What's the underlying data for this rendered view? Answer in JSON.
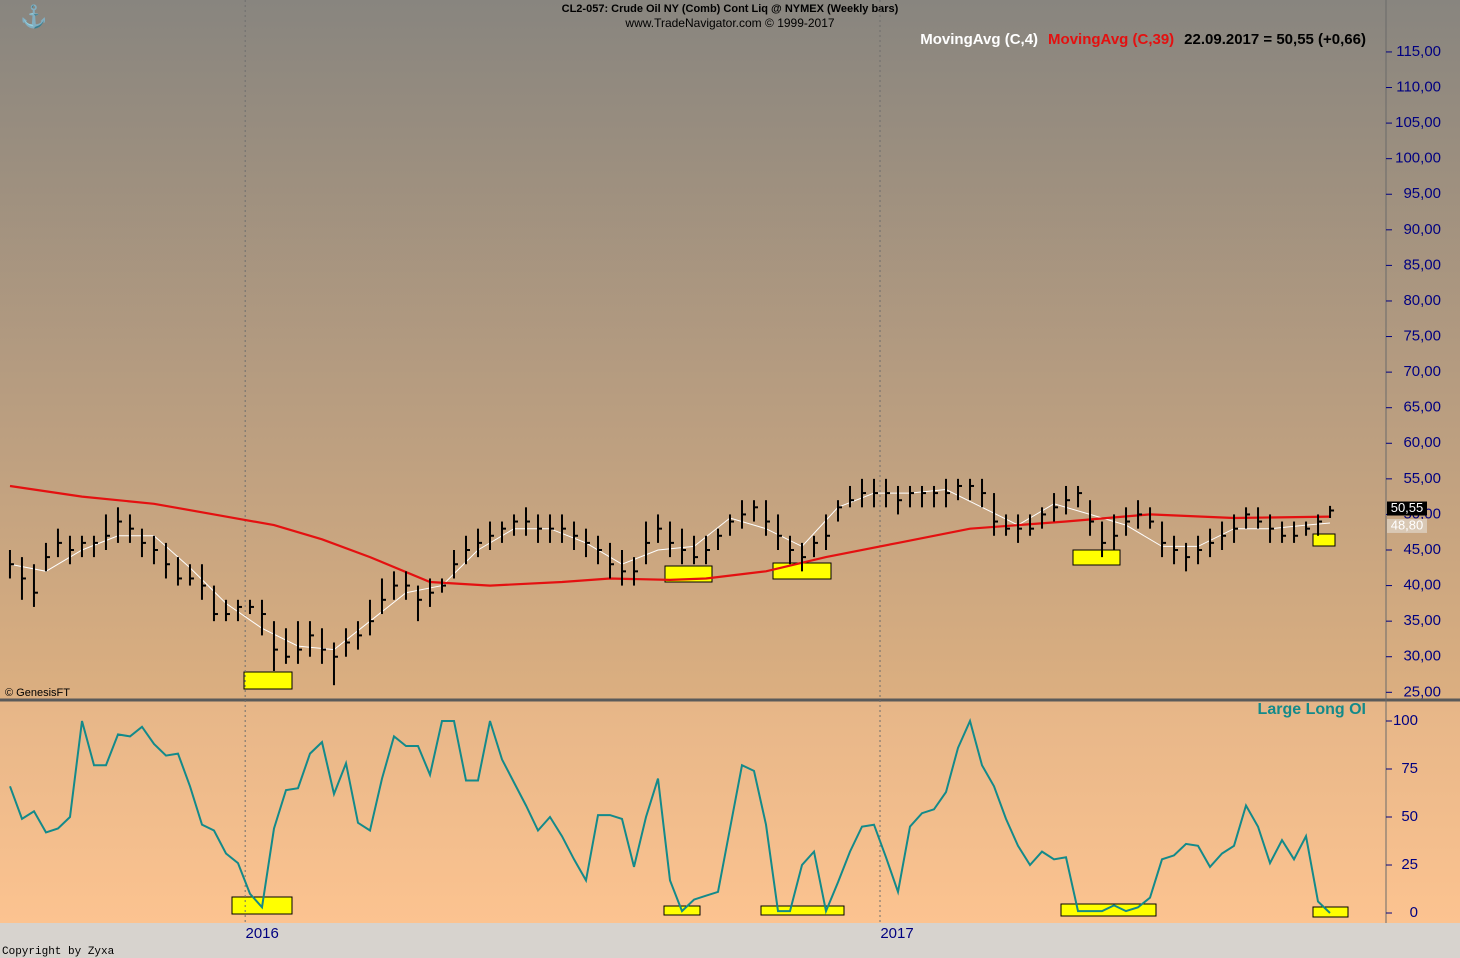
{
  "chart_data": [
    {
      "type": "hlc",
      "title": "CL2-057:  Crude Oil NY (Comb) Cont Liq @ NYMEX  (Weekly bars)",
      "subtitle": "www.TradeNavigator.com © 1999-2017",
      "note": "22.09.2017 = 50,55 (+0,66)",
      "credit": "© GenesisFT",
      "color": "#000000",
      "high": [
        45,
        44,
        43,
        46,
        48,
        47,
        47,
        47,
        50,
        51,
        50,
        48,
        47,
        46,
        44,
        43,
        43,
        40,
        38,
        38,
        38,
        38,
        35,
        34,
        35,
        35,
        34,
        32,
        34,
        35,
        38,
        41,
        42,
        42,
        40,
        41,
        41,
        45,
        47,
        48,
        49,
        49,
        50,
        51,
        50,
        50,
        50,
        49,
        48,
        47,
        46,
        45,
        44,
        49,
        50,
        49,
        48,
        47,
        47,
        48,
        50,
        52,
        52,
        52,
        50,
        47,
        46,
        47,
        50,
        52,
        54,
        55,
        55,
        55,
        54,
        54,
        54,
        54,
        55,
        55,
        55,
        55,
        53,
        50,
        50,
        50,
        51,
        53,
        54,
        54,
        52,
        49,
        50,
        51,
        52,
        51,
        49,
        47,
        46,
        47,
        48,
        49,
        50,
        51,
        51,
        50,
        49,
        49,
        49,
        50,
        51.2
      ],
      "low": [
        41,
        38,
        37,
        42,
        44,
        43,
        44,
        44,
        45,
        46,
        46,
        44,
        43,
        41,
        40,
        40,
        38,
        35,
        35,
        35,
        36,
        33,
        28,
        29,
        29,
        30,
        29,
        26,
        30,
        31,
        33,
        36,
        38,
        38,
        35,
        37,
        39,
        41,
        43,
        44,
        45,
        46,
        47,
        47,
        46,
        46,
        46,
        45,
        44,
        43,
        41,
        40,
        40,
        43,
        46,
        44,
        43,
        43,
        43,
        45,
        47,
        48,
        49,
        47,
        45,
        43,
        42,
        44,
        45,
        49,
        51,
        51,
        51,
        51,
        50,
        51,
        51,
        51,
        51,
        52,
        52,
        51,
        47,
        47,
        46,
        47,
        48,
        49,
        50,
        51,
        47,
        44,
        45,
        47,
        48,
        48,
        44,
        43,
        42,
        43,
        44,
        45,
        46,
        48,
        48,
        46,
        46,
        46,
        47,
        47,
        49.5
      ],
      "close": [
        43,
        41,
        39,
        44,
        46,
        45,
        46,
        46,
        47,
        49,
        48,
        46,
        45,
        43,
        41,
        41,
        40,
        36,
        36,
        37,
        37,
        36,
        31,
        30,
        31,
        33,
        31,
        30,
        32,
        33,
        35,
        38,
        40,
        40,
        38,
        39,
        40,
        43,
        45,
        46,
        47,
        48,
        49,
        49,
        48,
        48,
        48,
        47,
        46,
        45,
        43,
        42,
        42,
        46,
        48,
        46,
        45,
        44,
        45,
        47,
        49,
        50,
        51,
        49,
        47,
        45,
        44,
        46,
        47,
        51,
        52,
        53,
        53,
        53,
        52,
        53,
        53,
        53,
        53,
        54,
        54,
        53,
        49,
        48,
        48,
        48,
        50,
        51,
        52,
        53,
        49,
        46,
        47,
        49,
        50,
        49,
        46,
        45,
        44,
        45,
        46,
        47,
        48,
        50,
        49,
        48,
        47,
        47,
        48,
        49,
        50.55
      ],
      "series": [
        {
          "name": "MovingAvg (C,4)",
          "color": "#ffffff",
          "x": [
            0,
            3,
            6,
            9,
            12,
            15,
            18,
            21,
            24,
            27,
            30,
            33,
            36,
            39,
            42,
            45,
            48,
            51,
            54,
            57,
            60,
            63,
            66,
            69,
            72,
            75,
            78,
            81,
            84,
            87,
            90,
            93,
            96,
            99,
            102,
            105,
            108,
            110
          ],
          "values": [
            43,
            42,
            45,
            47,
            47,
            42.5,
            37.5,
            34,
            31.5,
            31,
            35,
            39,
            40,
            45,
            48,
            48,
            46,
            43,
            45,
            45.5,
            49.5,
            48,
            45.5,
            51,
            53,
            53,
            53.5,
            51,
            48.5,
            51.5,
            50,
            48.5,
            45.5,
            45.5,
            48,
            48,
            48.5,
            48.8
          ]
        },
        {
          "name": "MovingAvg (C,39)",
          "color": "#e41010",
          "x": [
            0,
            6,
            12,
            17,
            22,
            26,
            30,
            35,
            40,
            46,
            50,
            55,
            58,
            63,
            68,
            74,
            80,
            88,
            95,
            102,
            110
          ],
          "values": [
            54,
            52.5,
            51.5,
            50,
            48.5,
            46.5,
            44,
            40.5,
            40,
            40.5,
            41,
            40.8,
            41,
            42,
            44,
            46,
            48,
            49,
            50,
            49.5,
            49.7
          ]
        }
      ],
      "annotations": [
        {
          "value": 50.55,
          "label": "50,55"
        },
        {
          "value": 48.8,
          "label": "48,80"
        }
      ],
      "xlim": [
        -0.83,
        114.58
      ],
      "ylim": [
        24.2,
        122.3
      ],
      "yticks": [
        {
          "value": 25,
          "label": "25,00"
        },
        {
          "value": 30,
          "label": "30,00"
        },
        {
          "value": 35,
          "label": "35,00"
        },
        {
          "value": 40,
          "label": "40,00"
        },
        {
          "value": 45,
          "label": "45,00"
        },
        {
          "value": 50,
          "label": "50,00"
        },
        {
          "value": 55,
          "label": "55,00"
        },
        {
          "value": 60,
          "label": "60,00"
        },
        {
          "value": 65,
          "label": "65,00"
        },
        {
          "value": 70,
          "label": "70,00"
        },
        {
          "value": 75,
          "label": "75,00"
        },
        {
          "value": 80,
          "label": "80,00"
        },
        {
          "value": 85,
          "label": "85,00"
        },
        {
          "value": 90,
          "label": "90,00"
        },
        {
          "value": 95,
          "label": "95,00"
        },
        {
          "value": 100,
          "label": "100,00"
        },
        {
          "value": 105,
          "label": "105,00"
        },
        {
          "value": 110,
          "label": "110,00"
        },
        {
          "value": 115,
          "label": "115,00"
        }
      ]
    },
    {
      "type": "line",
      "title": "Large Long OI",
      "color": "#138a8a",
      "values": [
        66,
        49,
        53,
        42,
        44,
        50,
        100,
        77,
        77,
        93,
        92,
        97,
        88,
        82,
        83,
        66,
        46,
        43,
        31,
        26,
        10,
        3,
        44,
        64,
        65,
        83,
        89,
        62,
        78,
        47,
        43,
        70,
        92,
        87,
        87,
        72,
        100,
        100,
        69,
        69,
        100,
        80,
        68,
        56,
        43,
        50,
        40,
        28,
        17,
        51,
        51,
        49,
        24,
        50,
        70,
        17,
        1,
        7,
        9,
        11,
        44,
        77,
        74,
        46,
        1,
        1,
        25,
        32,
        1,
        16,
        32,
        45,
        46,
        29,
        11,
        45,
        52,
        54,
        63,
        86,
        100,
        77,
        66,
        49,
        35,
        25,
        32,
        28,
        29,
        1,
        1,
        1,
        4,
        1,
        3,
        8,
        28,
        30,
        36,
        35,
        24,
        31,
        35,
        56,
        45,
        26,
        38,
        28,
        40,
        6,
        0
      ],
      "xlim": [
        -0.83,
        114.58
      ],
      "xticks": [
        {
          "value": 19.6,
          "label": "2016"
        },
        {
          "value": 72.5,
          "label": "2017"
        }
      ],
      "ylim": [
        -5.2,
        109.9
      ],
      "yticks": [
        0,
        25,
        50,
        75,
        100
      ]
    }
  ],
  "footer": "Copyright by Zyxa"
}
